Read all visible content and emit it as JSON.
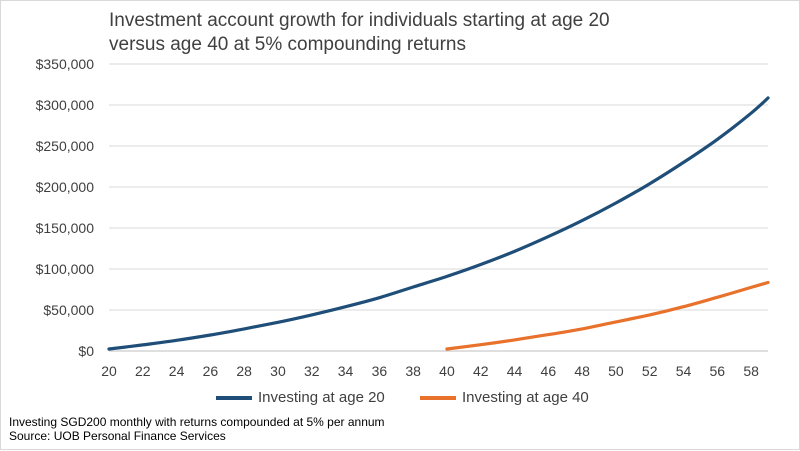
{
  "chart_data": {
    "type": "line",
    "title": [
      "Investment account growth for individuals starting at age 20",
      "versus age 40 at 5% compounding returns"
    ],
    "xlabel": "",
    "ylabel": "",
    "x_ticks": [
      20,
      22,
      24,
      26,
      28,
      30,
      32,
      34,
      36,
      38,
      40,
      42,
      44,
      46,
      48,
      50,
      52,
      54,
      56,
      58
    ],
    "y_ticks": [
      "$0",
      "$50,000",
      "$100,000",
      "$150,000",
      "$200,000",
      "$250,000",
      "$300,000",
      "$350,000"
    ],
    "xlim": [
      20,
      59
    ],
    "ylim": [
      0,
      350000
    ],
    "series": [
      {
        "name": "Investing at age 20",
        "color": "#1f4e79",
        "x": [
          20,
          22,
          24,
          26,
          28,
          30,
          32,
          34,
          36,
          38,
          40,
          42,
          44,
          46,
          48,
          50,
          52,
          54,
          56,
          58,
          59
        ],
        "values": [
          2450,
          7500,
          13000,
          19500,
          27000,
          35000,
          44000,
          54000,
          65000,
          78000,
          91000,
          105500,
          121500,
          139500,
          159000,
          180500,
          204000,
          230000,
          258000,
          290000,
          308500
        ]
      },
      {
        "name": "Investing at age 40",
        "color": "#e8712b",
        "x": [
          40,
          42,
          44,
          46,
          48,
          50,
          52,
          54,
          56,
          58,
          59
        ],
        "values": [
          2450,
          7700,
          13500,
          20000,
          27000,
          35500,
          44000,
          54000,
          65500,
          77500,
          83500
        ]
      }
    ],
    "legend_position": "bottom",
    "grid": "horizontal"
  },
  "footnote": {
    "line1": "Investing SGD200 monthly with returns compounded at 5% per annum",
    "line2": "Source: UOB Personal Finance Services"
  }
}
